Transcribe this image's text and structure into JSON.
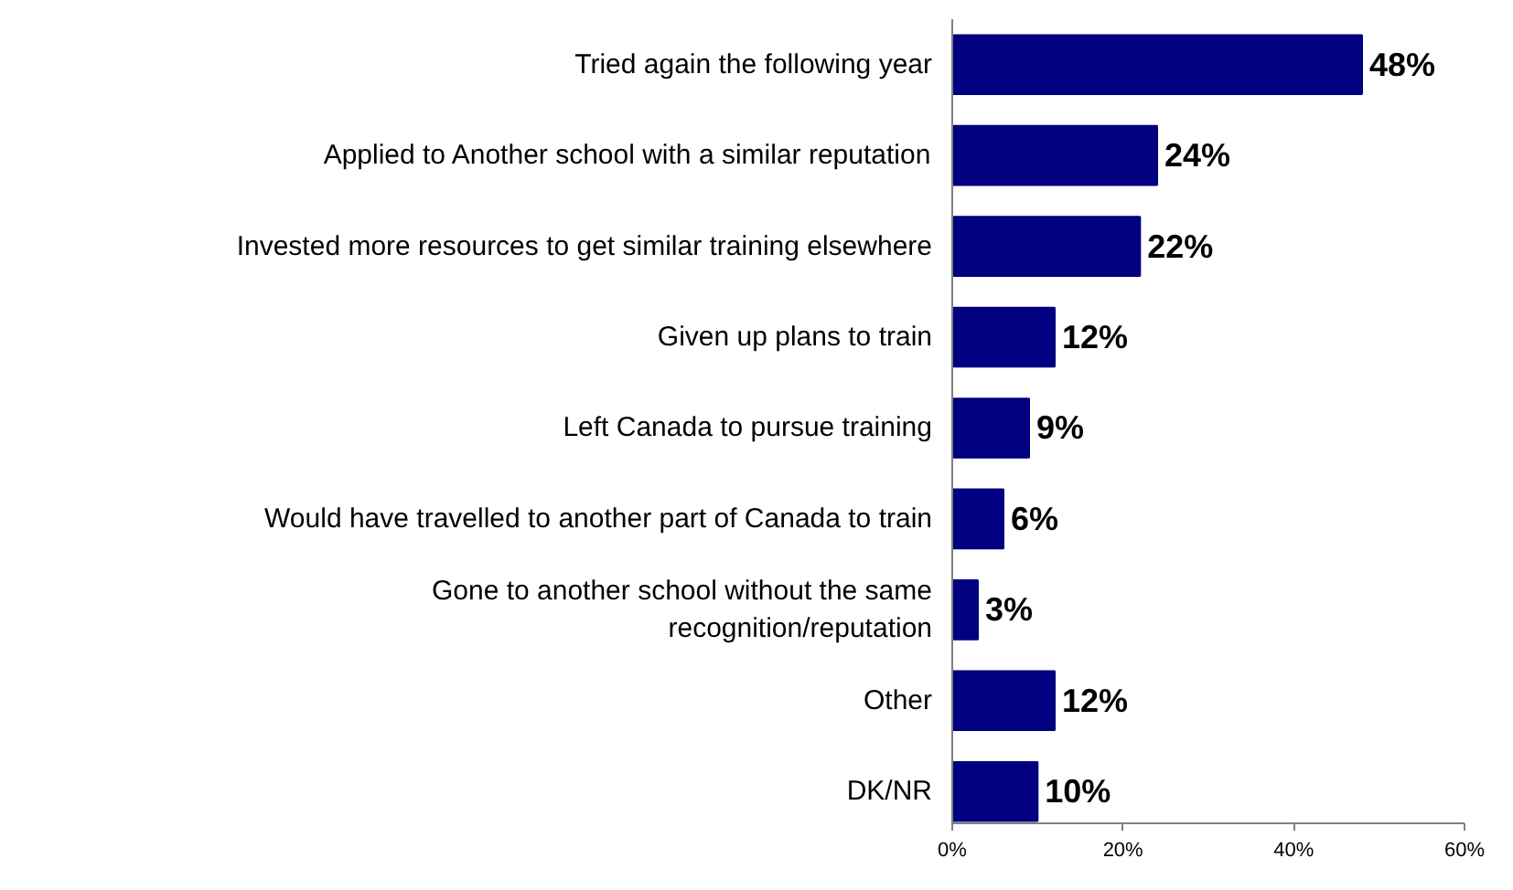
{
  "chart_data": {
    "type": "bar",
    "orientation": "horizontal",
    "categories": [
      "Tried again the following year",
      "Applied to Another school with a similar reputation",
      "Invested more resources to get similar training elsewhere",
      "Given up plans to train",
      "Left Canada to pursue training",
      "Would have travelled to another part of Canada to train",
      "Gone to another school without the same\nrecognition/reputation",
      "Other",
      "DK/NR"
    ],
    "values": [
      48,
      24,
      22,
      12,
      9,
      6,
      3,
      12,
      10
    ],
    "value_labels": [
      "48%",
      "24%",
      "22%",
      "12%",
      "9%",
      "6%",
      "3%",
      "12%",
      "10%"
    ],
    "color": "#000080",
    "xlim": [
      0,
      60
    ],
    "xticks": [
      {
        "value": 0,
        "label": "0%"
      },
      {
        "value": 20,
        "label": "20%"
      },
      {
        "value": 40,
        "label": "40%"
      },
      {
        "value": 60,
        "label": "60%"
      }
    ],
    "grid": false
  }
}
